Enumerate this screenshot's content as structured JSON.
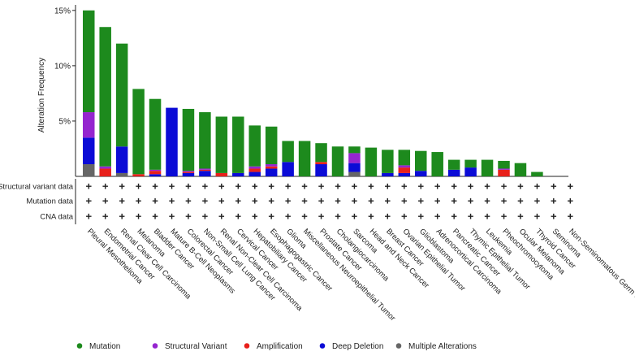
{
  "chart_data": {
    "type": "bar",
    "stacked": true,
    "ylabel": "Alteration Frequency",
    "yticks": [
      "5%",
      "10%",
      "15%"
    ],
    "ytick_values": [
      5,
      10,
      15
    ],
    "ylim": [
      0,
      15.5
    ],
    "categories": [
      "Pleural Mesothelioma",
      "Endometrial Cancer",
      "Renal Clear Cell Carcinoma",
      "Melanoma",
      "Bladder Cancer",
      "Mature B-Cell Neoplasms",
      "Colorectal Cancer",
      "Non-Small Cell Lung Cancer",
      "Renal Non-Clear Cell Carcinoma",
      "Cervical Cancer",
      "Hepatobiliary Cancer",
      "Esophagogastric Cancer",
      "Glioma",
      "Miscellaneous Neuroepithelial Tumor",
      "Prostate Cancer",
      "Cholangiocarcinoma",
      "Sarcoma",
      "Head and Neck Cancer",
      "Breast Cancer",
      "Ovarian Epithelial Tumor",
      "Glioblastoma",
      "Adrenocortical Carcinoma",
      "Pancreatic Cancer",
      "Thymic Epithelial Tumor",
      "Leukemia",
      "Pheochromocytoma",
      "Ocular Melanoma",
      "Thyroid Cancer",
      "Seminoma",
      "Non-Seminomatous Germ Cell Tumor"
    ],
    "series": [
      {
        "name": "Multiple Alterations",
        "key": "multi",
        "color": "#666666",
        "values": [
          1.1,
          0,
          0.3,
          0,
          0,
          0,
          0,
          0,
          0,
          0,
          0,
          0,
          0,
          0,
          0,
          0,
          0.4,
          0,
          0,
          0,
          0,
          0,
          0,
          0,
          0,
          0,
          0,
          0,
          0,
          0
        ]
      },
      {
        "name": "Deep Deletion",
        "key": "deep",
        "color": "#0b0bd6",
        "values": [
          2.4,
          0,
          2.4,
          0,
          0.2,
          6.2,
          0.3,
          0.5,
          0,
          0.3,
          0.4,
          0.7,
          1.3,
          0,
          1.1,
          0,
          0.8,
          0,
          0.3,
          0.3,
          0.5,
          0,
          0.6,
          0.8,
          0,
          0,
          0,
          0,
          0,
          0
        ]
      },
      {
        "name": "Amplification",
        "key": "amp",
        "color": "#e8201b",
        "values": [
          0,
          0.7,
          0,
          0.2,
          0.3,
          0,
          0.1,
          0.1,
          0.3,
          0,
          0.3,
          0.2,
          0,
          0,
          0.2,
          0,
          0,
          0,
          0,
          0.5,
          0,
          0,
          0,
          0,
          0,
          0.6,
          0,
          0,
          0,
          0
        ]
      },
      {
        "name": "Structural Variant",
        "key": "sv",
        "color": "#9525cf",
        "values": [
          2.3,
          0.2,
          0,
          0,
          0.1,
          0,
          0.1,
          0.1,
          0,
          0,
          0.2,
          0.2,
          0,
          0,
          0,
          0,
          0.9,
          0,
          0,
          0.2,
          0,
          0,
          0,
          0,
          0,
          0.1,
          0,
          0,
          0,
          0
        ]
      },
      {
        "name": "Mutation",
        "key": "mut",
        "color": "#1d8a1d",
        "values": [
          9.2,
          12.6,
          9.3,
          7.7,
          6.4,
          0,
          5.6,
          5.1,
          5.1,
          5.1,
          3.7,
          3.4,
          1.9,
          3.2,
          1.7,
          2.7,
          0.6,
          2.6,
          2.1,
          1.4,
          1.8,
          2.2,
          0.9,
          0.7,
          1.5,
          0.7,
          1.2,
          0.4,
          0,
          0
        ]
      }
    ],
    "legend_order": [
      "mut",
      "sv",
      "amp",
      "deep",
      "multi"
    ],
    "legend_position": "bottom"
  },
  "profile_rows": [
    {
      "label": "Structural variant data",
      "symbol": "+"
    },
    {
      "label": "Mutation data",
      "symbol": "+"
    },
    {
      "label": "CNA data",
      "symbol": "+"
    }
  ]
}
